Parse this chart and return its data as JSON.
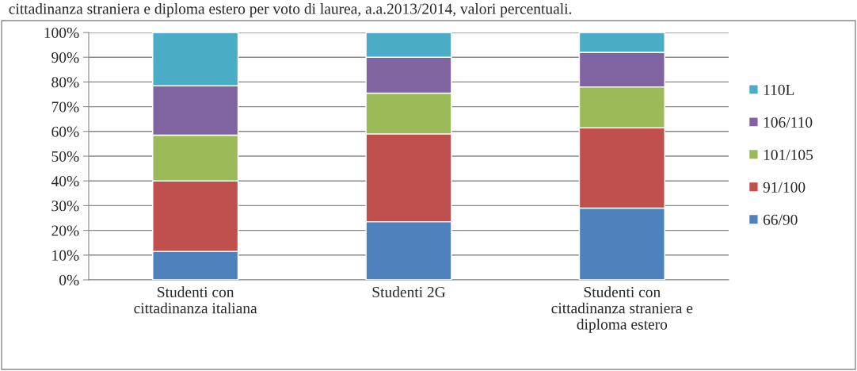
{
  "chart_data": {
    "type": "bar",
    "stacked": true,
    "title": "cittadinanza straniera e diploma estero per voto di laurea, a.a.2013/2014, valori percentuali.",
    "categories": [
      "Studenti con\ncittadinanza italiana",
      "Studenti 2G",
      "Studenti con\ncittadinanza straniera e\ndiploma estero"
    ],
    "series": [
      {
        "name": "66/90",
        "color": "#4f81bd",
        "values": [
          11.5,
          23.5,
          29
        ]
      },
      {
        "name": "91/100",
        "color": "#c0504d",
        "values": [
          28.5,
          35.5,
          32.5
        ]
      },
      {
        "name": "101/105",
        "color": "#9bbb59",
        "values": [
          18.5,
          16.5,
          16.5
        ]
      },
      {
        "name": "106/110",
        "color": "#8064a2",
        "values": [
          20,
          14.5,
          14
        ]
      },
      {
        "name": "110L",
        "color": "#4bacc6",
        "values": [
          21.5,
          10,
          8
        ]
      }
    ],
    "ylim": [
      0,
      100
    ],
    "yticks": [
      {
        "value": 0,
        "label": "0%"
      },
      {
        "value": 10,
        "label": "10%"
      },
      {
        "value": 20,
        "label": "20%"
      },
      {
        "value": 30,
        "label": "30%"
      },
      {
        "value": 40,
        "label": "40%"
      },
      {
        "value": 50,
        "label": "50%"
      },
      {
        "value": 60,
        "label": "60%"
      },
      {
        "value": 70,
        "label": "70%"
      },
      {
        "value": 80,
        "label": "80%"
      },
      {
        "value": 90,
        "label": "90%"
      },
      {
        "value": 100,
        "label": "100%"
      }
    ],
    "grid": "y",
    "legend": "right"
  }
}
